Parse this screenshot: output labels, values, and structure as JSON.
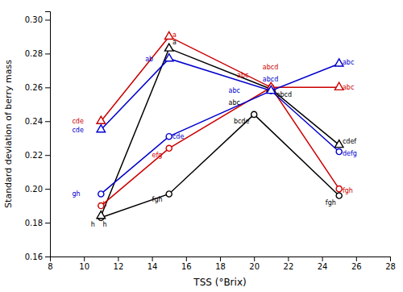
{
  "chart_data": {
    "type": "line",
    "xlabel": "TSS (°Brix)",
    "ylabel": "Standard deviation of berry mass",
    "xlim": [
      8,
      28
    ],
    "ylim": [
      0.16,
      0.305
    ],
    "xticks": [
      8,
      10,
      12,
      14,
      16,
      18,
      20,
      22,
      24,
      26,
      28
    ],
    "yticks": [
      0.16,
      0.18,
      {
        "value": 0.2,
        "label": "0.20"
      },
      0.22,
      0.24,
      0.26,
      0.28,
      {
        "value": 0.3,
        "label": "0.30"
      }
    ],
    "grid": false,
    "series": [
      {
        "color": "black",
        "marker": "circle",
        "line_style": "solid",
        "x": [
          11,
          15,
          20,
          25
        ],
        "values": [
          0.183,
          0.197,
          0.244,
          0.196
        ]
      },
      {
        "color": "black",
        "marker": "triangle",
        "line_style": "solid",
        "x": [
          11,
          15,
          21,
          25
        ],
        "values": [
          0.184,
          0.283,
          0.259,
          0.226
        ]
      },
      {
        "color": "#cc0000",
        "marker": "circle",
        "line_style": "solid",
        "x": [
          11,
          15,
          21,
          25
        ],
        "values": [
          0.19,
          0.224,
          0.26,
          0.2
        ]
      },
      {
        "color": "#cc0000",
        "marker": "triangle",
        "line_style": "solid",
        "x": [
          11,
          15,
          21,
          25
        ],
        "values": [
          0.24,
          0.29,
          0.26,
          0.26
        ]
      },
      {
        "color": "#0000cc",
        "marker": "circle",
        "line_style": "solid",
        "x": [
          11,
          15,
          21,
          25
        ],
        "values": [
          0.197,
          0.231,
          0.258,
          0.222
        ]
      },
      {
        "color": "#0000cc",
        "marker": "triangle",
        "line_style": "solid",
        "x": [
          11,
          15,
          21,
          25
        ],
        "values": [
          0.235,
          0.277,
          0.258,
          0.274
        ]
      }
    ],
    "annotations": [
      {
        "text": "h",
        "x": 10.4,
        "y": 0.179,
        "color": "black"
      },
      {
        "text": "h",
        "x": 11.1,
        "y": 0.179,
        "color": "black"
      },
      {
        "text": "h",
        "x": 11.1,
        "y": 0.191,
        "color": "#cc0000"
      },
      {
        "text": "gh",
        "x": 9.3,
        "y": 0.197,
        "color": "#0000cc"
      },
      {
        "text": "cde",
        "x": 9.3,
        "y": 0.24,
        "color": "#cc0000"
      },
      {
        "text": "cde",
        "x": 9.3,
        "y": 0.235,
        "color": "#0000cc"
      },
      {
        "text": "a",
        "x": 15.2,
        "y": 0.287,
        "color": "black"
      },
      {
        "text": "a",
        "x": 15.2,
        "y": 0.291,
        "color": "#cc0000"
      },
      {
        "text": "ab",
        "x": 13.6,
        "y": 0.277,
        "color": "#0000cc"
      },
      {
        "text": "cde",
        "x": 15.2,
        "y": 0.231,
        "color": "#0000cc"
      },
      {
        "text": "efg",
        "x": 14.0,
        "y": 0.22,
        "color": "#cc0000"
      },
      {
        "text": "fgh",
        "x": 14.0,
        "y": 0.194,
        "color": "black"
      },
      {
        "text": "abcd",
        "x": 20.5,
        "y": 0.272,
        "color": "#cc0000"
      },
      {
        "text": "abc",
        "x": 19.0,
        "y": 0.267,
        "color": "#cc0000"
      },
      {
        "text": "abcd",
        "x": 20.5,
        "y": 0.265,
        "color": "#0000cc"
      },
      {
        "text": "abc",
        "x": 18.5,
        "y": 0.258,
        "color": "#0000cc"
      },
      {
        "text": "abc",
        "x": 18.5,
        "y": 0.251,
        "color": "black"
      },
      {
        "text": "abcd",
        "x": 21.3,
        "y": 0.256,
        "color": "black"
      },
      {
        "text": "bcde",
        "x": 18.8,
        "y": 0.24,
        "color": "black"
      },
      {
        "text": "abc",
        "x": 25.2,
        "y": 0.275,
        "color": "#0000cc"
      },
      {
        "text": "abc",
        "x": 25.2,
        "y": 0.26,
        "color": "#cc0000"
      },
      {
        "text": "cdef",
        "x": 25.2,
        "y": 0.228,
        "color": "black"
      },
      {
        "text": "defg",
        "x": 25.2,
        "y": 0.221,
        "color": "#0000cc"
      },
      {
        "text": "fgh",
        "x": 25.2,
        "y": 0.199,
        "color": "#cc0000"
      },
      {
        "text": "fgh",
        "x": 24.2,
        "y": 0.192,
        "color": "black"
      }
    ]
  }
}
